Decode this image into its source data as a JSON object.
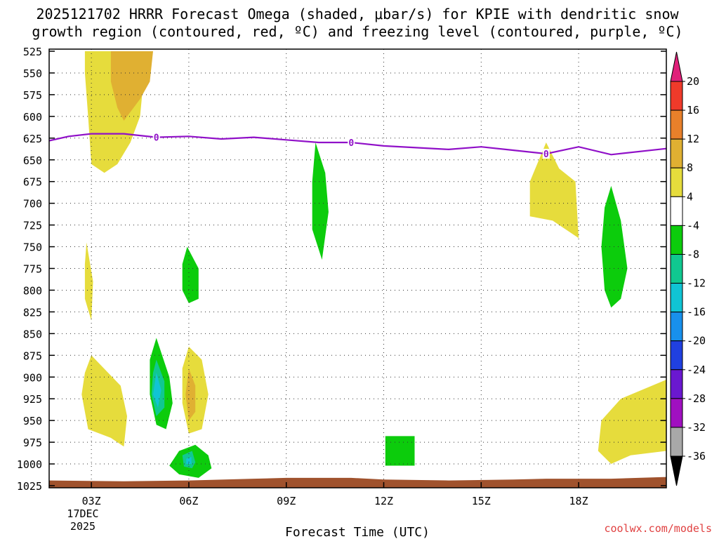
{
  "chart_data": {
    "type": "contour-heatmap",
    "title_lines": [
      "2025121702 HRRR Forecast Omega (shaded, μbar/s) for KPIE with dendritic snow",
      "growth region (contoured, red, ºC) and freezing level (contoured, purple, ºC)"
    ],
    "xlabel": "Forecast Time (UTC)",
    "date_label": [
      "17DEC",
      "2025"
    ],
    "credit": "coolwx.com/models",
    "x_range_hours": [
      1.7,
      20.7
    ],
    "y_range_hpa": [
      525,
      1025
    ],
    "x_ticks": [
      {
        "hour": 3,
        "label": "03Z"
      },
      {
        "hour": 6,
        "label": "06Z"
      },
      {
        "hour": 9,
        "label": "09Z"
      },
      {
        "hour": 12,
        "label": "12Z"
      },
      {
        "hour": 15,
        "label": "15Z"
      },
      {
        "hour": 18,
        "label": "18Z"
      }
    ],
    "y_ticks": [
      "525",
      "550",
      "575",
      "600",
      "625",
      "650",
      "675",
      "700",
      "725",
      "750",
      "775",
      "800",
      "825",
      "850",
      "875",
      "900",
      "925",
      "950",
      "975",
      "1000",
      "1025"
    ],
    "colorbar": {
      "ticks": [
        "20",
        "16",
        "12",
        "8",
        "4",
        "-4",
        "-8",
        "-12",
        "-16",
        "-20",
        "-24",
        "-28",
        "-32",
        "-36"
      ],
      "bins": [
        {
          "low": 20,
          "high": 99,
          "color": "#e0207a"
        },
        {
          "low": 16,
          "high": 20,
          "color": "#ef3a2a"
        },
        {
          "low": 12,
          "high": 16,
          "color": "#e8802a"
        },
        {
          "low": 8,
          "high": 12,
          "color": "#e0b032"
        },
        {
          "low": 4,
          "high": 8,
          "color": "#e6dc3c"
        },
        {
          "low": -4,
          "high": 4,
          "color": "#ffffff"
        },
        {
          "low": -8,
          "high": -4,
          "color": "#0ccc0c"
        },
        {
          "low": -12,
          "high": -8,
          "color": "#10c890"
        },
        {
          "low": -16,
          "high": -12,
          "color": "#10c4d4"
        },
        {
          "low": -20,
          "high": -16,
          "color": "#1890ec"
        },
        {
          "low": -24,
          "high": -20,
          "color": "#2040e0"
        },
        {
          "low": -28,
          "high": -24,
          "color": "#6a18d0"
        },
        {
          "low": -32,
          "high": -28,
          "color": "#a010c0"
        },
        {
          "low": -36,
          "high": -32,
          "color": "#a8a8a8"
        },
        {
          "low": -99,
          "high": -36,
          "color": "#000000"
        }
      ]
    },
    "freezing_level": {
      "label": "0",
      "color": "#9010c8",
      "points": [
        [
          1.7,
          628
        ],
        [
          2.3,
          623
        ],
        [
          3.0,
          620
        ],
        [
          4.0,
          620
        ],
        [
          5.0,
          624
        ],
        [
          6.0,
          623
        ],
        [
          7.0,
          626
        ],
        [
          8.0,
          624
        ],
        [
          9.0,
          627
        ],
        [
          10.0,
          630
        ],
        [
          11.0,
          630
        ],
        [
          12.0,
          634
        ],
        [
          13.0,
          636
        ],
        [
          14.0,
          638
        ],
        [
          15.0,
          635
        ],
        [
          16.0,
          639
        ],
        [
          17.0,
          643
        ],
        [
          18.0,
          635
        ],
        [
          19.0,
          644
        ],
        [
          20.7,
          637
        ]
      ],
      "label_hours": [
        5.0,
        11.0,
        17.0
      ]
    },
    "omega_regions": [
      {
        "value": 6,
        "points": [
          [
            2.8,
            525
          ],
          [
            4.5,
            525
          ],
          [
            4.6,
            560
          ],
          [
            4.5,
            600
          ],
          [
            4.2,
            630
          ],
          [
            3.8,
            655
          ],
          [
            3.4,
            665
          ],
          [
            3.0,
            655
          ],
          [
            2.9,
            600
          ],
          [
            2.8,
            550
          ]
        ]
      },
      {
        "value": 10,
        "points": [
          [
            3.6,
            525
          ],
          [
            4.9,
            525
          ],
          [
            4.8,
            560
          ],
          [
            4.5,
            580
          ],
          [
            4.0,
            605
          ],
          [
            3.8,
            590
          ],
          [
            3.6,
            560
          ]
        ]
      },
      {
        "value": -6,
        "points": [
          [
            9.9,
            630
          ],
          [
            10.2,
            665
          ],
          [
            10.3,
            710
          ],
          [
            10.1,
            765
          ],
          [
            9.8,
            730
          ],
          [
            9.8,
            675
          ]
        ]
      },
      {
        "value": 6,
        "points": [
          [
            17.0,
            630
          ],
          [
            17.4,
            660
          ],
          [
            17.9,
            675
          ],
          [
            18.0,
            740
          ],
          [
            17.2,
            720
          ],
          [
            16.5,
            715
          ],
          [
            16.5,
            675
          ]
        ]
      },
      {
        "value": -6,
        "points": [
          [
            19.0,
            680
          ],
          [
            19.3,
            720
          ],
          [
            19.5,
            775
          ],
          [
            19.3,
            810
          ],
          [
            19.0,
            820
          ],
          [
            18.8,
            800
          ],
          [
            18.7,
            750
          ],
          [
            18.8,
            705
          ]
        ]
      },
      {
        "value": 6,
        "points": [
          [
            2.85,
            745
          ],
          [
            3.05,
            790
          ],
          [
            3.0,
            835
          ],
          [
            2.8,
            810
          ],
          [
            2.8,
            770
          ]
        ]
      },
      {
        "value": -6,
        "points": [
          [
            5.95,
            750
          ],
          [
            6.3,
            775
          ],
          [
            6.3,
            810
          ],
          [
            6.0,
            815
          ],
          [
            5.8,
            800
          ],
          [
            5.8,
            770
          ]
        ]
      },
      {
        "value": 6,
        "points": [
          [
            3.0,
            875
          ],
          [
            3.9,
            910
          ],
          [
            4.1,
            945
          ],
          [
            4.0,
            980
          ],
          [
            3.6,
            970
          ],
          [
            2.9,
            960
          ],
          [
            2.7,
            920
          ],
          [
            2.8,
            895
          ]
        ]
      },
      {
        "value": -6,
        "points": [
          [
            5.0,
            855
          ],
          [
            5.4,
            900
          ],
          [
            5.5,
            930
          ],
          [
            5.3,
            960
          ],
          [
            5.0,
            955
          ],
          [
            4.8,
            920
          ],
          [
            4.8,
            880
          ]
        ]
      },
      {
        "value": -10,
        "points": [
          [
            5.0,
            880
          ],
          [
            5.25,
            905
          ],
          [
            5.25,
            935
          ],
          [
            5.0,
            945
          ],
          [
            4.85,
            920
          ],
          [
            4.9,
            895
          ]
        ]
      },
      {
        "value": -14,
        "points": [
          [
            5.0,
            895
          ],
          [
            5.15,
            915
          ],
          [
            5.05,
            935
          ],
          [
            4.9,
            920
          ]
        ]
      },
      {
        "value": 6,
        "points": [
          [
            6.0,
            865
          ],
          [
            6.4,
            880
          ],
          [
            6.6,
            920
          ],
          [
            6.4,
            960
          ],
          [
            6.0,
            965
          ],
          [
            5.8,
            930
          ],
          [
            5.8,
            890
          ]
        ]
      },
      {
        "value": 10,
        "points": [
          [
            6.0,
            890
          ],
          [
            6.2,
            910
          ],
          [
            6.2,
            940
          ],
          [
            6.0,
            950
          ],
          [
            5.9,
            920
          ]
        ]
      },
      {
        "value": -6,
        "points": [
          [
            5.7,
            985
          ],
          [
            6.2,
            978
          ],
          [
            6.6,
            990
          ],
          [
            6.7,
            1005
          ],
          [
            6.3,
            1016
          ],
          [
            5.7,
            1012
          ],
          [
            5.4,
            1002
          ]
        ]
      },
      {
        "value": -10,
        "points": [
          [
            5.8,
            990
          ],
          [
            6.1,
            985
          ],
          [
            6.2,
            998
          ],
          [
            6.1,
            1005
          ],
          [
            5.85,
            1003
          ]
        ]
      },
      {
        "value": -14,
        "points": [
          [
            5.92,
            994
          ],
          [
            6.08,
            992
          ],
          [
            6.08,
            1000
          ],
          [
            5.92,
            1000
          ]
        ]
      },
      {
        "value": -6,
        "points": [
          [
            12.05,
            968
          ],
          [
            12.95,
            968
          ],
          [
            12.95,
            1002
          ],
          [
            12.05,
            1002
          ]
        ]
      },
      {
        "value": 6,
        "points": [
          [
            20.7,
            903
          ],
          [
            20.7,
            985
          ],
          [
            19.6,
            990
          ],
          [
            19.0,
            1000
          ],
          [
            18.6,
            985
          ],
          [
            18.7,
            950
          ],
          [
            19.3,
            925
          ]
        ]
      }
    ],
    "terrain": {
      "color": "#a0522d",
      "points": [
        [
          1.7,
          1019
        ],
        [
          4.0,
          1020
        ],
        [
          6.0,
          1019
        ],
        [
          8.0,
          1017
        ],
        [
          9.0,
          1016
        ],
        [
          11.0,
          1016
        ],
        [
          12.0,
          1018
        ],
        [
          14.0,
          1019
        ],
        [
          16.0,
          1018
        ],
        [
          17.0,
          1017
        ],
        [
          19.0,
          1017
        ],
        [
          20.7,
          1015
        ]
      ]
    }
  }
}
